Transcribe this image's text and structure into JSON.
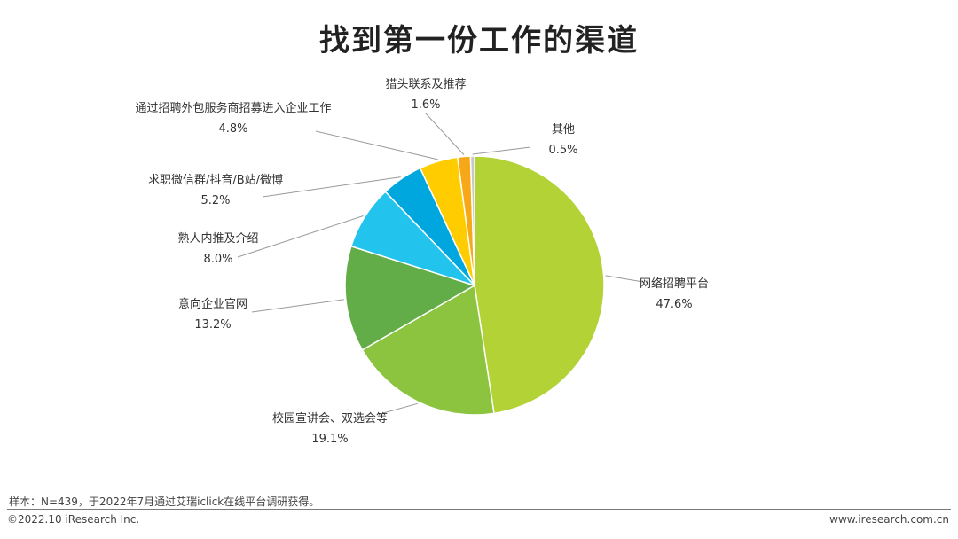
{
  "chart_data": {
    "type": "pie",
    "title": "找到第一份工作的渠道",
    "slices": [
      {
        "label": "网络招聘平台",
        "value": 47.6,
        "value_label": "47.6%",
        "color": "#b2d235"
      },
      {
        "label": "校园宣讲会、双选会等",
        "value": 19.1,
        "value_label": "19.1%",
        "color": "#8cc43f"
      },
      {
        "label": "意向企业官网",
        "value": 13.2,
        "value_label": "13.2%",
        "color": "#62ad47"
      },
      {
        "label": "熟人内推及介绍",
        "value": 8.0,
        "value_label": "8.0%",
        "color": "#22c4ee"
      },
      {
        "label": "求职微信群/抖音/B站/微博",
        "value": 5.2,
        "value_label": "5.2%",
        "color": "#00a7df"
      },
      {
        "label": "通过招聘外包服务商招募进入企业工作",
        "value": 4.8,
        "value_label": "4.8%",
        "color": "#ffcc00"
      },
      {
        "label": "猎头联系及推荐",
        "value": 1.6,
        "value_label": "1.6%",
        "color": "#f7a818"
      },
      {
        "label": "其他",
        "value": 0.5,
        "value_label": "0.5%",
        "color": "#c8c8c8"
      }
    ]
  },
  "footer": {
    "note": "样本：N=439，于2022年7月通过艾瑞iclick在线平台调研获得。",
    "copyright": "©2022.10 iResearch Inc.",
    "website": "www.iresearch.com.cn"
  }
}
